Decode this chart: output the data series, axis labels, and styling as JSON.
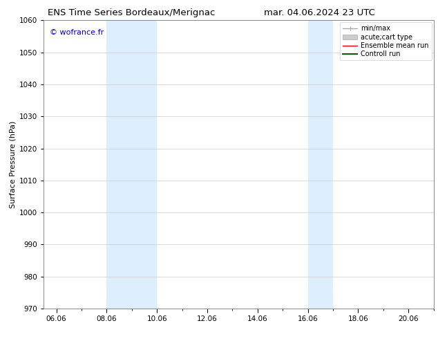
{
  "title_left": "ENS Time Series Bordeaux/Merignac",
  "title_right": "mar. 04.06.2024 23 UTC",
  "ylabel": "Surface Pressure (hPa)",
  "ylim": [
    970,
    1060
  ],
  "yticks": [
    970,
    980,
    990,
    1000,
    1010,
    1020,
    1030,
    1040,
    1050,
    1060
  ],
  "xlim_start": 5.5,
  "xlim_end": 21.0,
  "xtick_labels": [
    "06.06",
    "08.06",
    "10.06",
    "12.06",
    "14.06",
    "16.06",
    "18.06",
    "20.06"
  ],
  "xtick_positions": [
    6.0,
    8.0,
    10.0,
    12.0,
    14.0,
    16.0,
    18.0,
    20.0
  ],
  "shaded_bands": [
    {
      "x_start": 8.0,
      "x_end": 10.0
    },
    {
      "x_start": 16.0,
      "x_end": 17.0
    }
  ],
  "shaded_color": "#ddeeff",
  "watermark": "© wofrance.fr",
  "watermark_color": "#0000cc",
  "legend_entries": [
    {
      "label": "min/max",
      "color": "#aaaaaa",
      "lw": 1.0,
      "type": "errorbar"
    },
    {
      "label": "acute;cart type",
      "color": "#cccccc",
      "lw": 6,
      "type": "fill"
    },
    {
      "label": "Ensemble mean run",
      "color": "#ff0000",
      "lw": 1.0,
      "type": "line"
    },
    {
      "label": "Controll run",
      "color": "#006600",
      "lw": 1.5,
      "type": "line"
    }
  ],
  "bg_color": "#ffffff",
  "grid_color": "#cccccc",
  "title_fontsize": 9.5,
  "axis_label_fontsize": 8,
  "tick_fontsize": 7.5,
  "watermark_fontsize": 8,
  "legend_fontsize": 7
}
